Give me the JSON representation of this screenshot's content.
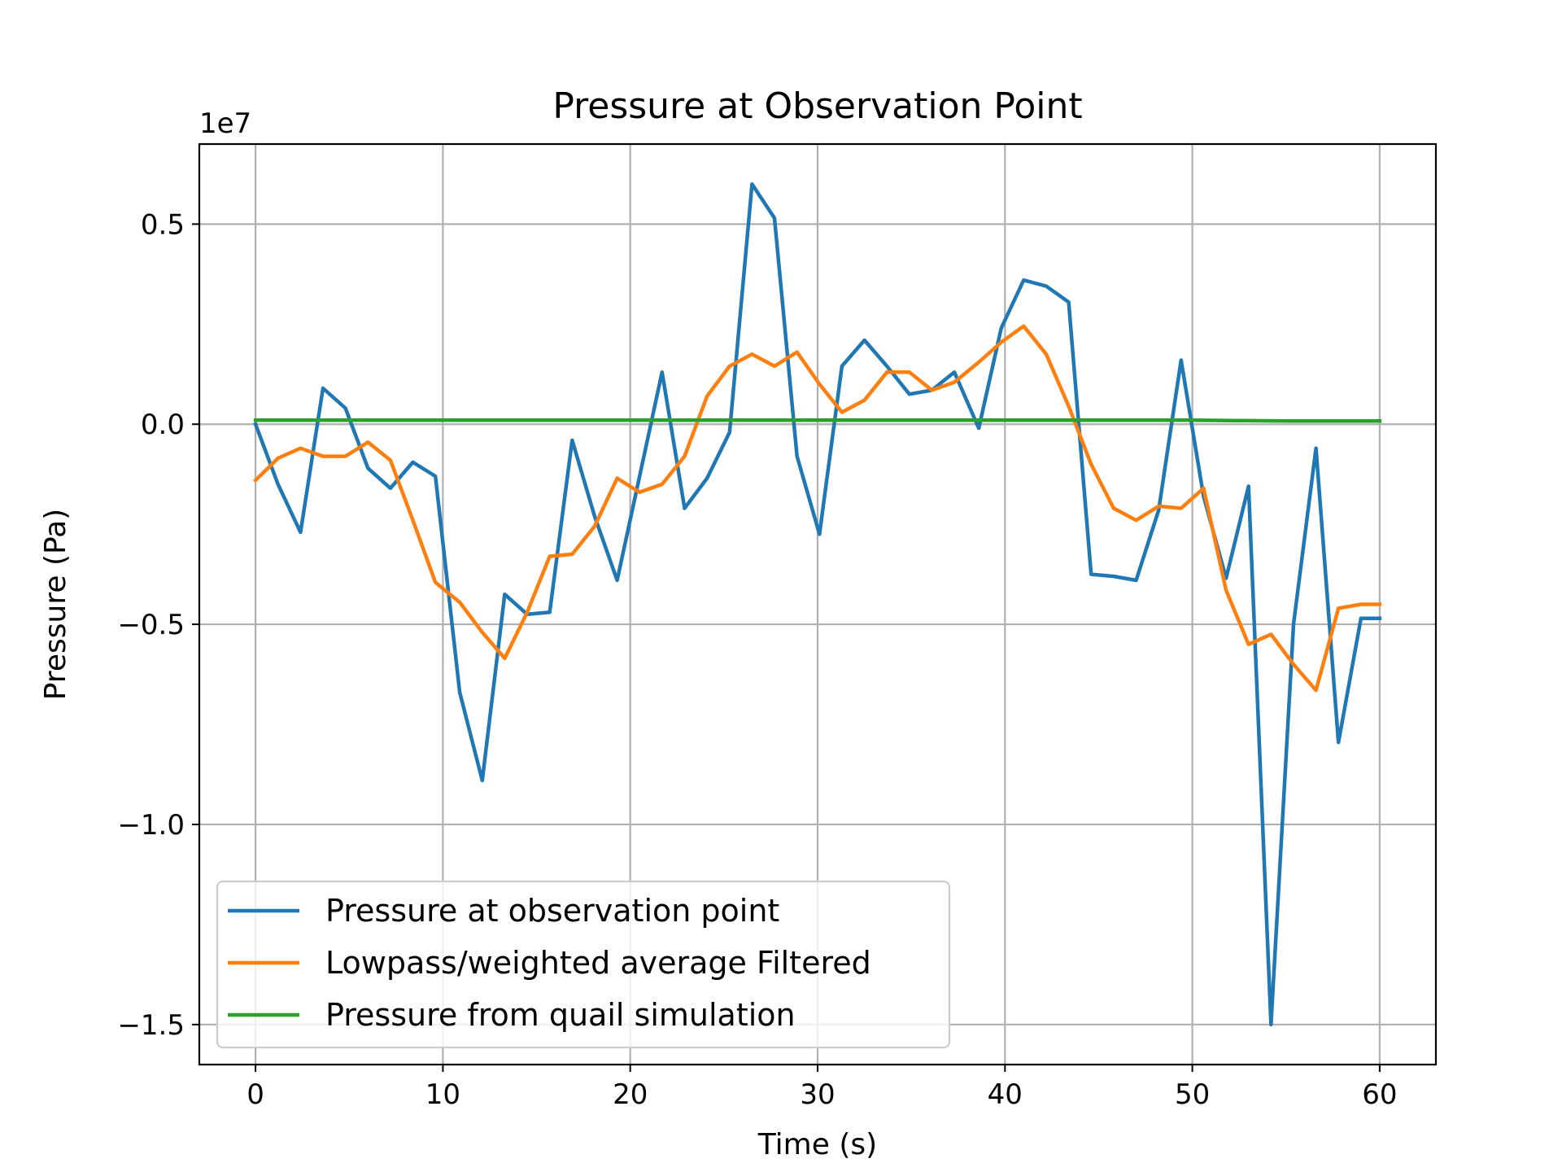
{
  "chart_data": {
    "type": "line",
    "title": "Pressure at Observation Point",
    "xlabel": "Time (s)",
    "ylabel": "Pressure (Pa)",
    "y_offset_label": "1e7",
    "xlim": [
      -3,
      63
    ],
    "ylim": [
      -16000000,
      7000000
    ],
    "xticks": [
      0,
      10,
      20,
      30,
      40,
      50,
      60
    ],
    "xtick_labels": [
      "0",
      "10",
      "20",
      "30",
      "40",
      "50",
      "60"
    ],
    "yticks": [
      -15000000,
      -10000000,
      -5000000,
      0,
      5000000
    ],
    "ytick_labels": [
      "−1.5",
      "−1.0",
      "−0.5",
      "0.0",
      "0.5"
    ],
    "grid": true,
    "legend_position": "lower-left",
    "series": [
      {
        "name": "Pressure at observation point",
        "color": "#1f77b4",
        "x": [
          0,
          1.2,
          2.4,
          3.6,
          4.8,
          6.0,
          7.2,
          8.4,
          9.6,
          10.9,
          12.1,
          13.3,
          14.5,
          15.7,
          16.9,
          18.1,
          19.3,
          20.5,
          21.7,
          22.9,
          24.1,
          25.3,
          26.5,
          27.7,
          28.9,
          30.1,
          31.3,
          32.5,
          33.7,
          34.9,
          36.1,
          37.3,
          38.6,
          39.8,
          41.0,
          42.2,
          43.4,
          44.6,
          45.8,
          47.0,
          48.2,
          49.4,
          50.6,
          51.8,
          53.0,
          54.2,
          55.4,
          56.6,
          57.8,
          59.0,
          60.0
        ],
        "y": [
          0,
          -1500000,
          -2700000,
          900000,
          400000,
          -1100000,
          -1600000,
          -950000,
          -1300000,
          -6700000,
          -8900000,
          -4250000,
          -4750000,
          -4700000,
          -400000,
          -2300000,
          -3900000,
          -1300000,
          1300000,
          -2100000,
          -1350000,
          -200000,
          6000000,
          5150000,
          -800000,
          -2750000,
          1450000,
          2100000,
          1450000,
          750000,
          850000,
          1300000,
          -100000,
          2400000,
          3600000,
          3450000,
          3050000,
          -3750000,
          -3800000,
          -3900000,
          -2150000,
          1600000,
          -1800000,
          -3850000,
          -1550000,
          -15000000,
          -5000000,
          -600000,
          -7950000,
          -4850000,
          -4850000
        ]
      },
      {
        "name": "Lowpass/weighted average Filtered",
        "color": "#ff7f0e",
        "x": [
          0,
          1.2,
          2.4,
          3.6,
          4.8,
          6.0,
          7.2,
          8.4,
          9.6,
          10.9,
          12.1,
          13.3,
          14.5,
          15.7,
          16.9,
          18.1,
          19.3,
          20.5,
          21.7,
          22.9,
          24.1,
          25.3,
          26.5,
          27.7,
          28.9,
          30.1,
          31.3,
          32.5,
          33.7,
          34.9,
          36.1,
          37.3,
          38.6,
          39.8,
          41.0,
          42.2,
          43.4,
          44.6,
          45.8,
          47.0,
          48.2,
          49.4,
          50.6,
          51.8,
          53.0,
          54.2,
          55.4,
          56.6,
          57.8,
          59.0,
          60.0
        ],
        "y": [
          -1400000,
          -850000,
          -600000,
          -800000,
          -800000,
          -450000,
          -900000,
          -2400000,
          -3950000,
          -4450000,
          -5200000,
          -5850000,
          -4700000,
          -3300000,
          -3250000,
          -2550000,
          -1350000,
          -1700000,
          -1500000,
          -800000,
          700000,
          1450000,
          1750000,
          1450000,
          1800000,
          1000000,
          300000,
          600000,
          1300000,
          1300000,
          850000,
          1050000,
          1550000,
          2050000,
          2450000,
          1750000,
          450000,
          -1000000,
          -2100000,
          -2400000,
          -2050000,
          -2100000,
          -1600000,
          -4150000,
          -5500000,
          -5250000,
          -6000000,
          -6650000,
          -4600000,
          -4500000,
          -4500000
        ]
      },
      {
        "name": "Pressure from quail simulation",
        "color": "#2ca02c",
        "x": [
          0,
          10,
          20,
          30,
          40,
          45,
          50,
          55,
          60
        ],
        "y": [
          100000,
          100000,
          100000,
          100000,
          100000,
          100000,
          100000,
          80000,
          80000
        ]
      }
    ]
  }
}
